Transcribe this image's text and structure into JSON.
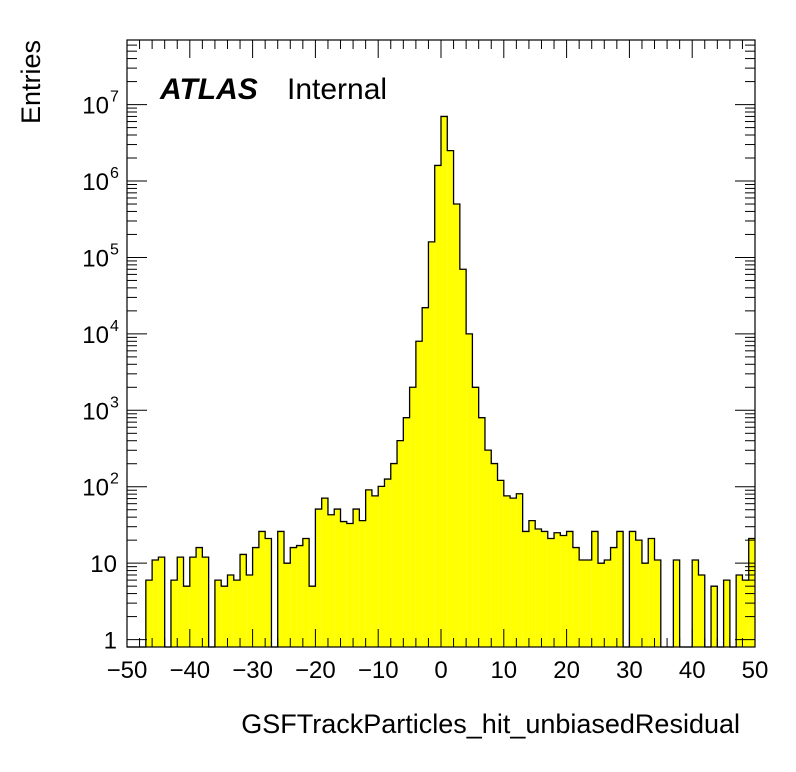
{
  "chart_data": {
    "type": "bar",
    "style": "histogram",
    "xlabel": "GSFTrackParticles_hit_unbiasedResidual",
    "ylabel": "Entries",
    "annotation": {
      "experiment": "ATLAS",
      "status": "Internal"
    },
    "yscale": "log",
    "xlim": [
      -50,
      50
    ],
    "ylim": [
      0.8,
      70000000
    ],
    "xticks": [
      -50,
      -40,
      -30,
      -20,
      -10,
      0,
      10,
      20,
      30,
      40,
      50
    ],
    "xtick_labels": [
      "−50",
      "−40",
      "−30",
      "−20",
      "−10",
      "0",
      "10",
      "20",
      "30",
      "40",
      "50"
    ],
    "yticks": [
      1,
      10,
      100,
      1000,
      10000,
      100000,
      1000000,
      10000000
    ],
    "ytick_labels": [
      {
        "base": "1",
        "exp": ""
      },
      {
        "base": "10",
        "exp": ""
      },
      {
        "base": "10",
        "exp": "2"
      },
      {
        "base": "10",
        "exp": "3"
      },
      {
        "base": "10",
        "exp": "4"
      },
      {
        "base": "10",
        "exp": "5"
      },
      {
        "base": "10",
        "exp": "6"
      },
      {
        "base": "10",
        "exp": "7"
      }
    ],
    "bin_width": 1,
    "bin_edges_start": -50,
    "fill_color": "#ffff00",
    "line_color": "#000000",
    "values": [
      0,
      0,
      0,
      6,
      11,
      12,
      0,
      6,
      12,
      5,
      12,
      16,
      12,
      0,
      6,
      5,
      7,
      6,
      13,
      7,
      16,
      26,
      21,
      0,
      26,
      10,
      16,
      17,
      21,
      5,
      51,
      71,
      43,
      51,
      35,
      33,
      51,
      36,
      91,
      76,
      101,
      126,
      201,
      401,
      801,
      2001,
      8001,
      22000,
      160000,
      1600000,
      7000000,
      2500000,
      500000,
      70000,
      10000,
      2000,
      801,
      301,
      201,
      121,
      76,
      71,
      81,
      26,
      36,
      28,
      26,
      21,
      25,
      23,
      26,
      16,
      11,
      11,
      26,
      10,
      11,
      16,
      26,
      0,
      26,
      20,
      10,
      21,
      11,
      0,
      0,
      11,
      0,
      0,
      11,
      7,
      0,
      5,
      0,
      6,
      0,
      7,
      6,
      21
    ]
  }
}
